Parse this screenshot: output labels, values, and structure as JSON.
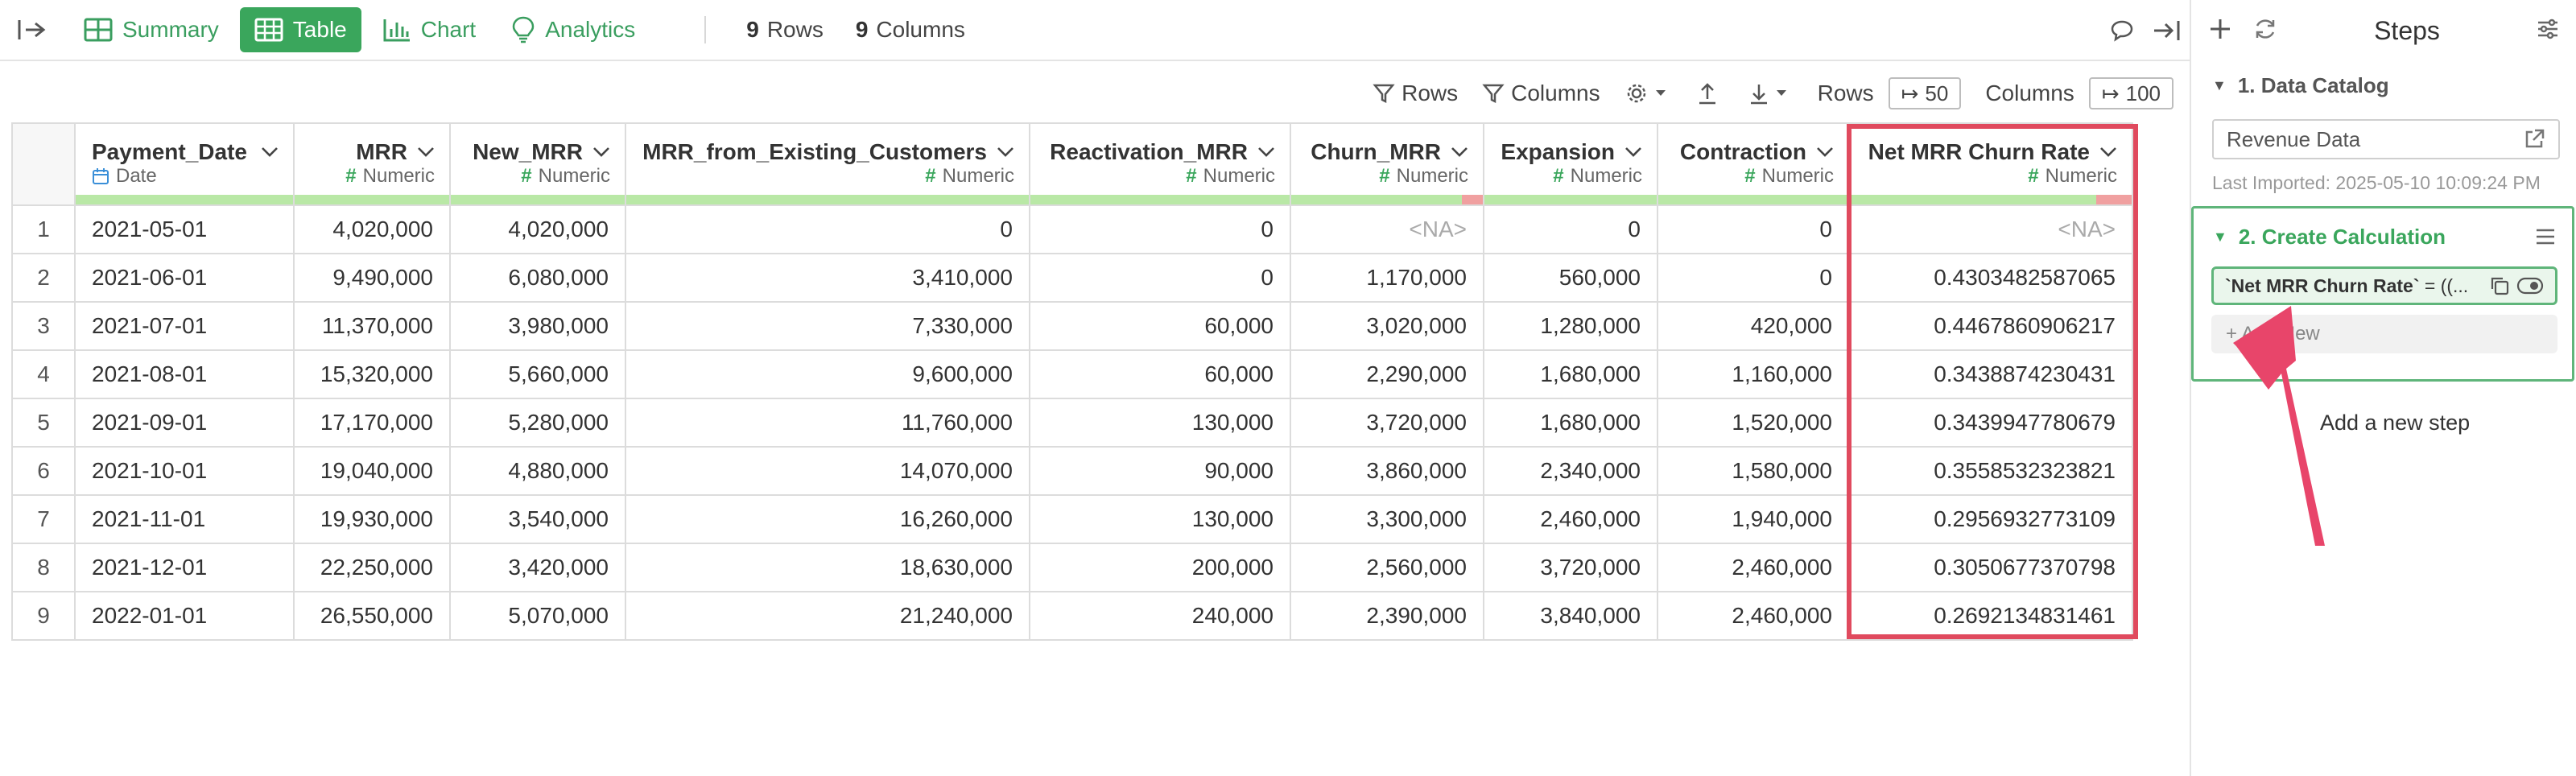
{
  "toolbar": {
    "views": [
      {
        "label": "Summary",
        "icon": "summary-grid-icon"
      },
      {
        "label": "Table",
        "icon": "table-icon",
        "active": true
      },
      {
        "label": "Chart",
        "icon": "bar-chart-icon"
      },
      {
        "label": "Analytics",
        "icon": "lightbulb-icon"
      }
    ],
    "rows_count": "9",
    "rows_label": "Rows",
    "cols_count": "9",
    "cols_label": "Columns"
  },
  "subbar": {
    "rows_filter": "Rows",
    "columns_filter": "Columns",
    "rows_label": "Rows",
    "rows_value": "50",
    "columns_label": "Columns",
    "columns_value": "100"
  },
  "table": {
    "columns": [
      {
        "name": "Payment_Date",
        "type": "Date"
      },
      {
        "name": "MRR",
        "type": "Numeric"
      },
      {
        "name": "New_MRR",
        "type": "Numeric"
      },
      {
        "name": "MRR_from_Existing_Customers",
        "type": "Numeric"
      },
      {
        "name": "Reactivation_MRR",
        "type": "Numeric"
      },
      {
        "name": "Churn_MRR",
        "type": "Numeric"
      },
      {
        "name": "Expansion",
        "type": "Numeric"
      },
      {
        "name": "Contraction",
        "type": "Numeric"
      },
      {
        "name": "Net MRR Churn Rate",
        "type": "Numeric"
      }
    ],
    "rows": [
      [
        "1",
        "2021-05-01",
        "4,020,000",
        "4,020,000",
        "0",
        "0",
        "<NA>",
        "0",
        "0",
        "<NA>"
      ],
      [
        "2",
        "2021-06-01",
        "9,490,000",
        "6,080,000",
        "3,410,000",
        "0",
        "1,170,000",
        "560,000",
        "0",
        "0.4303482587065"
      ],
      [
        "3",
        "2021-07-01",
        "11,370,000",
        "3,980,000",
        "7,330,000",
        "60,000",
        "3,020,000",
        "1,280,000",
        "420,000",
        "0.4467860906217"
      ],
      [
        "4",
        "2021-08-01",
        "15,320,000",
        "5,660,000",
        "9,600,000",
        "60,000",
        "2,290,000",
        "1,680,000",
        "1,160,000",
        "0.3438874230431"
      ],
      [
        "5",
        "2021-09-01",
        "17,170,000",
        "5,280,000",
        "11,760,000",
        "130,000",
        "3,720,000",
        "1,680,000",
        "1,520,000",
        "0.3439947780679"
      ],
      [
        "6",
        "2021-10-01",
        "19,040,000",
        "4,880,000",
        "14,070,000",
        "90,000",
        "3,860,000",
        "2,340,000",
        "1,580,000",
        "0.3558532323821"
      ],
      [
        "7",
        "2021-11-01",
        "19,930,000",
        "3,540,000",
        "16,260,000",
        "130,000",
        "3,300,000",
        "2,460,000",
        "1,940,000",
        "0.2956932773109"
      ],
      [
        "8",
        "2021-12-01",
        "22,250,000",
        "3,420,000",
        "18,630,000",
        "200,000",
        "2,560,000",
        "3,720,000",
        "2,460,000",
        "0.3050677370798"
      ],
      [
        "9",
        "2022-01-01",
        "26,550,000",
        "5,070,000",
        "21,240,000",
        "240,000",
        "2,390,000",
        "3,840,000",
        "2,460,000",
        "0.2692134831461"
      ]
    ]
  },
  "panel": {
    "title": "Steps",
    "step1_title": "1. Data Catalog",
    "step1_source": "Revenue Data",
    "step1_imported": "Last Imported: 2025-05-10 10:09:24 PM",
    "step2_title": "2. Create Calculation",
    "step2_formula_name": "`Net MRR Churn Rate`",
    "step2_formula_rest": " = ((...",
    "add_new": "+ Add New"
  },
  "annotation": {
    "text": "Add a new step",
    "color": "#e8456a"
  },
  "colors": {
    "accent": "#3aa65c",
    "highlight": "#e04a5e"
  }
}
